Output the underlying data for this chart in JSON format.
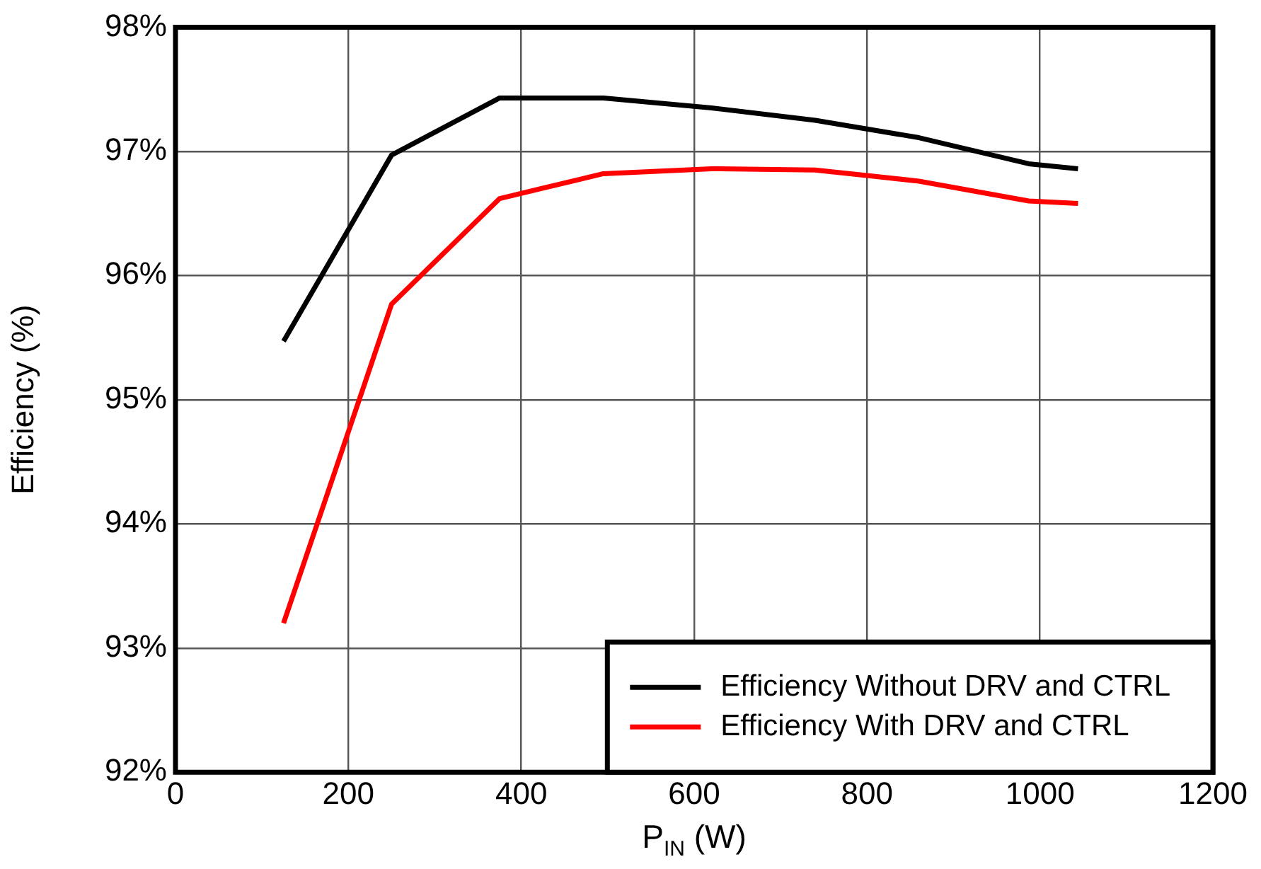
{
  "chart_data": {
    "type": "line",
    "xlabel": "P$_{IN}$ (W)",
    "ylabel": "Efficiency (%)",
    "x": [
      125,
      250,
      375,
      495,
      620,
      740,
      860,
      987,
      1044
    ],
    "series": [
      {
        "name": "Efficiency Without DRV and CTRL",
        "color": "#000000",
        "values": [
          95.47,
          96.97,
          97.43,
          97.43,
          97.35,
          97.25,
          97.11,
          96.9,
          96.86
        ]
      },
      {
        "name": "Efficiency With DRV and CTRL",
        "color": "#ff0000",
        "values": [
          93.2,
          95.77,
          96.62,
          96.82,
          96.86,
          96.85,
          96.76,
          96.6,
          96.58
        ]
      }
    ],
    "xlim": [
      0,
      1200
    ],
    "xticks": [
      0,
      200,
      400,
      600,
      800,
      1000,
      1200
    ],
    "ylim": [
      92,
      98
    ],
    "yticks": [
      {
        "value": 92,
        "label": "92%"
      },
      {
        "value": 93,
        "label": "93%"
      },
      {
        "value": 94,
        "label": "94%"
      },
      {
        "value": 95,
        "label": "95%"
      },
      {
        "value": 96,
        "label": "96%"
      },
      {
        "value": 97,
        "label": "97%"
      },
      {
        "value": 98,
        "label": "98%"
      }
    ],
    "grid": true,
    "legend": "bottom right",
    "marker": "none",
    "line_style": "solid"
  }
}
